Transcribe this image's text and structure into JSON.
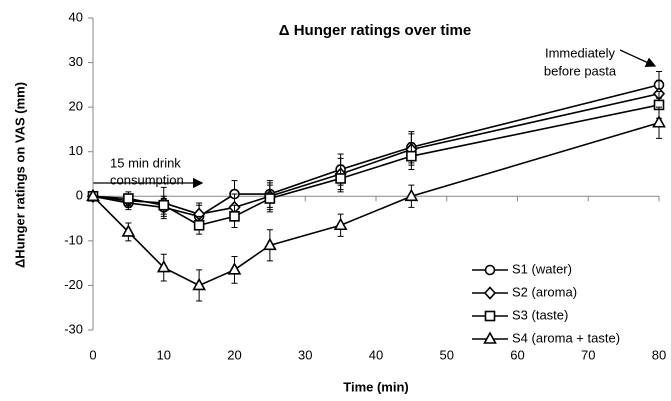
{
  "chart_data": {
    "type": "line",
    "title": "Δ Hunger ratings over time",
    "x_label": "Time (min)",
    "y_label": "ΔHunger ratings on VAS (mm)",
    "x": [
      0,
      5,
      10,
      15,
      20,
      25,
      35,
      45,
      80
    ],
    "xlim": [
      0,
      80
    ],
    "xticks": [
      0,
      10,
      20,
      30,
      40,
      50,
      60,
      70,
      80
    ],
    "ylim": [
      -30,
      40
    ],
    "yticks": [
      -30,
      -20,
      -10,
      0,
      10,
      20,
      30,
      40
    ],
    "grid": false,
    "legend": "lower right",
    "series": [
      {
        "name": "S1 (water)",
        "marker": "circle",
        "color": "#000000",
        "values": [
          0,
          -1.5,
          -2.5,
          -4.5,
          0.5,
          0.5,
          6,
          11,
          25
        ],
        "errors": [
          0.5,
          1.5,
          2,
          2.5,
          3,
          3,
          3.5,
          3.5,
          3
        ]
      },
      {
        "name": "S2 (aroma)",
        "marker": "diamond",
        "color": "#000000",
        "values": [
          0,
          -1,
          -1.5,
          -4,
          -2.5,
          0,
          5,
          10.5,
          23
        ],
        "errors": [
          0.5,
          1.5,
          3.5,
          2.5,
          3,
          3,
          3.5,
          3.5,
          3
        ]
      },
      {
        "name": "S3 (taste)",
        "marker": "square",
        "color": "#000000",
        "values": [
          0,
          -0.5,
          -2,
          -6.5,
          -4.5,
          -0.5,
          4,
          9,
          20.5
        ],
        "errors": [
          0.5,
          1.5,
          2,
          2,
          2.5,
          3,
          3,
          3,
          3
        ]
      },
      {
        "name": "S4 (aroma + taste)",
        "marker": "triangle",
        "color": "#000000",
        "values": [
          0,
          -8,
          -16,
          -20,
          -16.5,
          -11,
          -6.5,
          0,
          16.5
        ],
        "errors": [
          0.5,
          2,
          3,
          3.5,
          3,
          3.5,
          2.5,
          2.5,
          3.5
        ]
      }
    ],
    "annotations": [
      {
        "lines": [
          "15 min drink",
          "consumption"
        ]
      },
      {
        "lines": [
          "Immediately",
          "before pasta"
        ]
      }
    ]
  }
}
